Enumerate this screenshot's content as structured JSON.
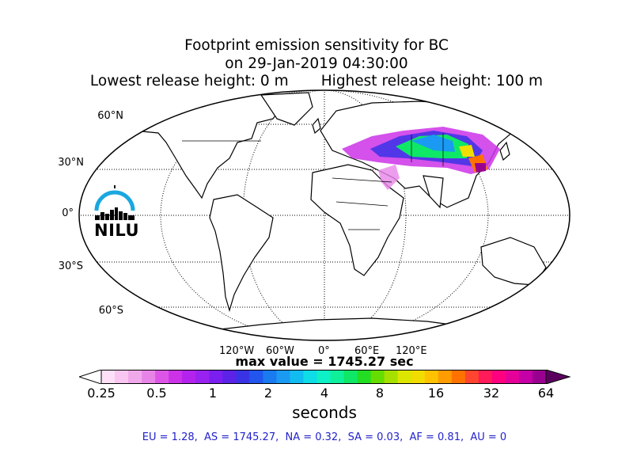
{
  "title": {
    "line1": "Footprint emission sensitivity for BC",
    "line2": "on 29-Jan-2019 04:30:00",
    "line3": "Lowest release height: 0 m       Highest release height: 100 m"
  },
  "map": {
    "projection": "robinson-like",
    "lat_labels": [
      "60°N",
      "30°N",
      "0°",
      "30°S",
      "60°S"
    ],
    "lon_labels": [
      "120°W",
      "60°W",
      "0°",
      "60°E",
      "120°E"
    ],
    "plume_region": "Central/East Asia",
    "colors": {
      "coast": "#000000",
      "grid": "#000000"
    }
  },
  "logo": {
    "text": "NILU",
    "accent": "#1aa7e0"
  },
  "max_value": "max value = 1745.27 sec",
  "colorbar": {
    "tick_labels": [
      "0.25",
      "0.5",
      "1",
      "2",
      "4",
      "8",
      "16",
      "32",
      "64"
    ],
    "units": "seconds",
    "colors": [
      "#fde0f7",
      "#f8c6f0",
      "#f0a8ea",
      "#e884e8",
      "#dd55e6",
      "#cc33e8",
      "#b422ee",
      "#9a22f0",
      "#7a1ff0",
      "#5c22e8",
      "#3a33e6",
      "#2255ee",
      "#1a7af0",
      "#1a9af2",
      "#12bcf0",
      "#0edce6",
      "#0ef0c6",
      "#0ef09a",
      "#0ee866",
      "#22dd22",
      "#66dd00",
      "#a6e000",
      "#dde600",
      "#f2dd00",
      "#ffc200",
      "#ff9c00",
      "#ff7200",
      "#ff4430",
      "#ff1a5a",
      "#ff0080",
      "#e6009a",
      "#c400a6",
      "#9a0090"
    ],
    "end_color": "#5c0060"
  },
  "stats": "EU = 1.28,  AS = 1745.27,  NA = 0.32,  SA = 0.03,  AF = 0.81,  AU = 0"
}
